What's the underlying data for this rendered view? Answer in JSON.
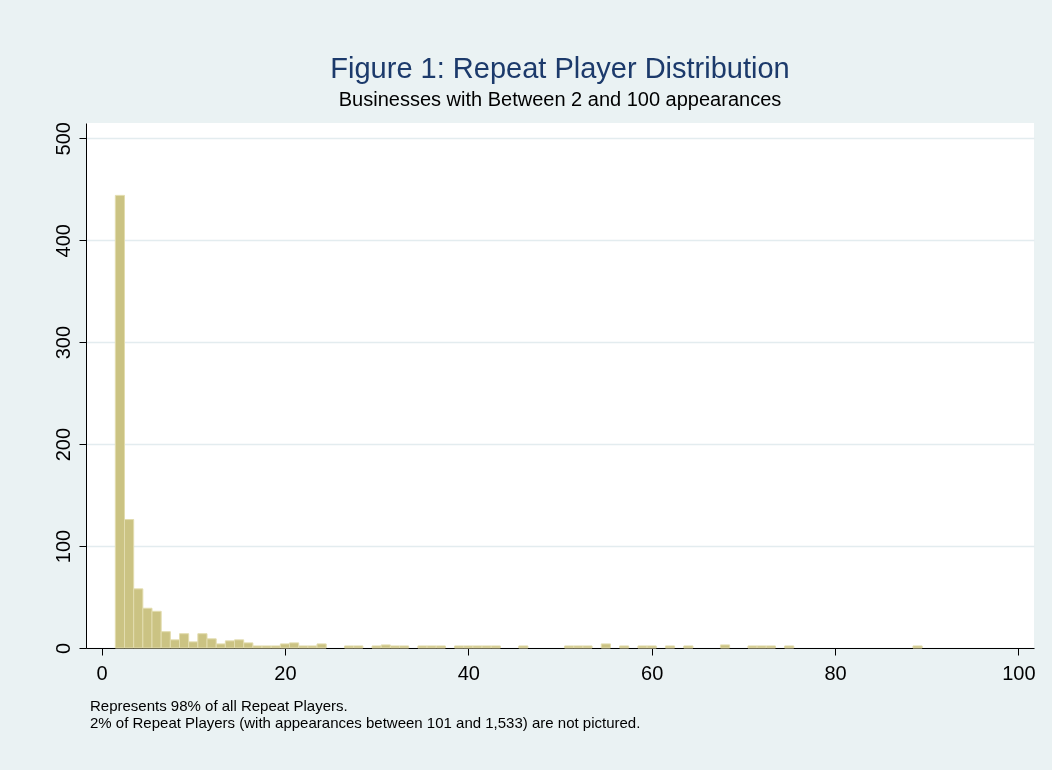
{
  "chart_data": {
    "type": "histogram",
    "title": "Figure 1: Repeat Player Distribution",
    "subtitle": "Businesses with Between 2 and 100 appearances",
    "annotations": [
      "Represents 98% of all Repeat Players.",
      "2% of Repeat Players (with appearances between 101 and 1,533) are not pictured."
    ],
    "bins": [
      1.5,
      2.5,
      3.5,
      4.5,
      5.5,
      6.5,
      7.5,
      8.5,
      9.5,
      10.5,
      11.5,
      12.5,
      13.5,
      14.5,
      15.5,
      16.5,
      17.5,
      18.5,
      19.5,
      20.5,
      21.5,
      22.5,
      23.5,
      24.5,
      25.5,
      26.5,
      27.5,
      28.5,
      29.5,
      30.5,
      31.5,
      32.5,
      33.5,
      34.5,
      35.5,
      36.5,
      37.5,
      38.5,
      39.5,
      40.5,
      41.5,
      42.5,
      43.5,
      44.5,
      45.5,
      46.5,
      47.5,
      48.5,
      49.5,
      50.5,
      51.5,
      52.5,
      53.5,
      54.5,
      55.5,
      56.5,
      57.5,
      58.5,
      59.5,
      60.5,
      61.5,
      62.5,
      63.5,
      64.5,
      65.5,
      66.5,
      67.5,
      68.5,
      69.5,
      70.5,
      71.5,
      72.5,
      73.5,
      74.5,
      75.5,
      76.5,
      77.5,
      78.5,
      79.5,
      80.5,
      81.5,
      82.5,
      83.5,
      84.5,
      85.5,
      86.5,
      87.5,
      88.5,
      89.5
    ],
    "values": [
      444,
      126,
      58,
      39,
      36,
      16,
      8,
      14,
      6,
      14,
      9,
      4,
      7,
      8,
      5,
      2,
      2,
      2,
      4,
      5,
      2,
      2,
      4,
      0,
      0,
      2,
      2,
      0,
      2,
      3,
      2,
      2,
      0,
      2,
      2,
      2,
      0,
      2,
      2,
      2,
      2,
      2,
      0,
      0,
      2,
      0,
      0,
      0,
      0,
      2,
      2,
      2,
      0,
      4,
      0,
      2,
      0,
      2,
      2,
      0,
      2,
      0,
      2,
      0,
      0,
      0,
      3,
      0,
      0,
      2,
      2,
      2,
      0,
      2,
      0,
      0,
      0,
      0,
      0,
      0,
      0,
      0,
      0,
      0,
      0,
      0,
      0,
      2
    ],
    "color": "#cbc383",
    "xlim": [
      -1.7,
      101.7
    ],
    "xticks": [
      0,
      20,
      40,
      60,
      80,
      100
    ],
    "ylim": [
      0,
      515
    ],
    "yticks": [
      0,
      100,
      200,
      300,
      400,
      500
    ],
    "grid": "y"
  }
}
